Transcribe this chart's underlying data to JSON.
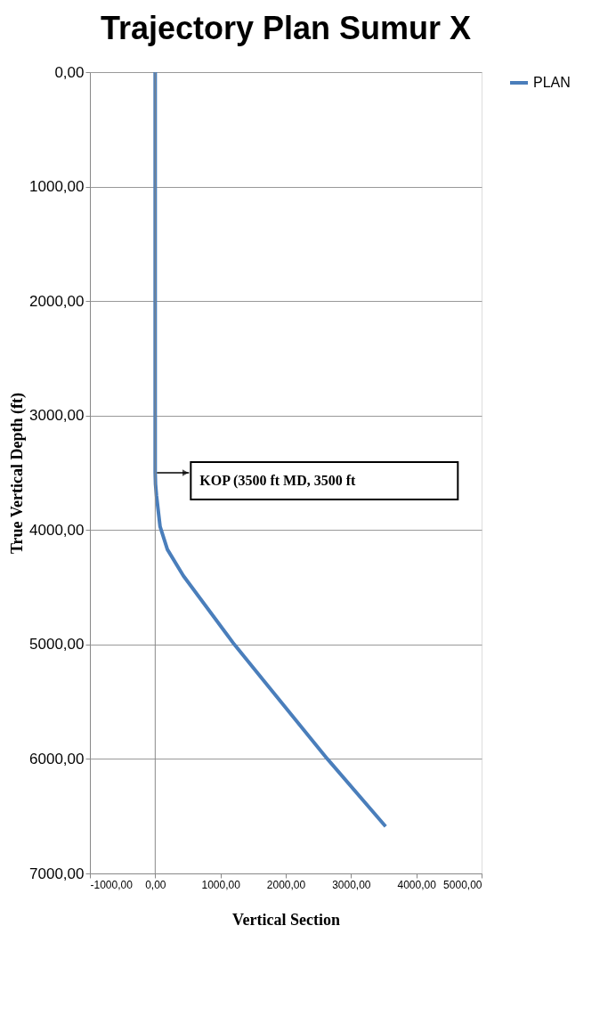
{
  "chart_data": {
    "type": "line",
    "title": "Trajectory Plan Sumur X",
    "xlabel": "Vertical Section",
    "ylabel": "True Vertical Depth (ft)",
    "series": [
      {
        "name": "PLAN",
        "color": "#4a7ebb",
        "x": [
          0,
          0,
          5,
          20,
          75,
          187,
          432,
          1212,
          2638,
          3530
        ],
        "values": [
          0,
          3500,
          3600,
          3700,
          3970,
          4170,
          4400,
          5000,
          6000,
          6590
        ]
      }
    ],
    "xlim": [
      -1000,
      5000
    ],
    "xticks": [
      {
        "value": -1000,
        "label": "-1000,00"
      },
      {
        "value": 0,
        "label": "0,00"
      },
      {
        "value": 1000,
        "label": "1000,00"
      },
      {
        "value": 2000,
        "label": "2000,00"
      },
      {
        "value": 3000,
        "label": "3000,00"
      },
      {
        "value": 4000,
        "label": "4000,00"
      },
      {
        "value": 5000,
        "label": "5000,00"
      }
    ],
    "ylim": [
      7000,
      0
    ],
    "yticks": [
      {
        "value": 0,
        "label": "0,00"
      },
      {
        "value": 1000,
        "label": "1000,00"
      },
      {
        "value": 2000,
        "label": "2000,00"
      },
      {
        "value": 3000,
        "label": "3000,00"
      },
      {
        "value": 4000,
        "label": "4000,00"
      },
      {
        "value": 5000,
        "label": "5000,00"
      },
      {
        "value": 6000,
        "label": "6000,00"
      },
      {
        "value": 7000,
        "label": "7000,00"
      }
    ],
    "annotations": [
      {
        "text": "KOP (3500 ft MD, 3500 ft",
        "x": 0,
        "y": 3500
      }
    ],
    "grid": "y",
    "legend": "right",
    "line_style": "solid",
    "marker": "none"
  }
}
